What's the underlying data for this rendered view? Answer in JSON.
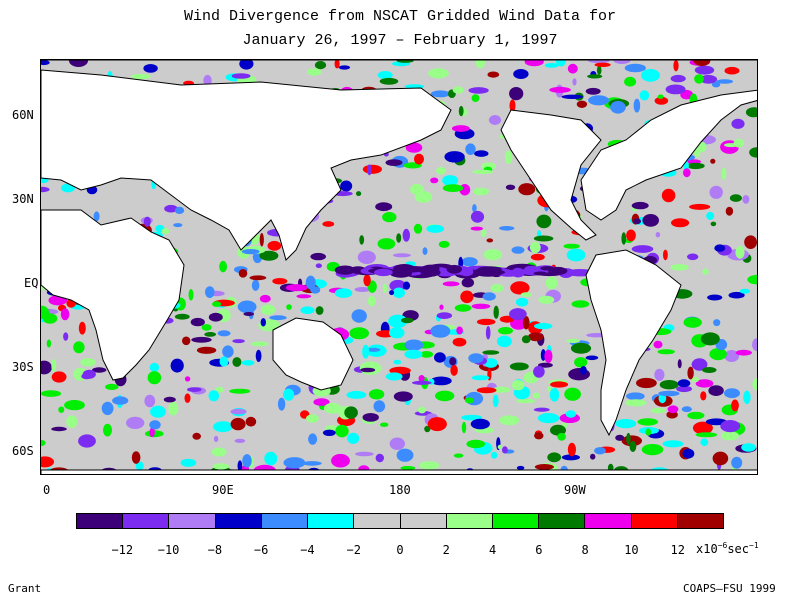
{
  "title_line1": "Wind Divergence from NSCAT Gridded Wind Data for",
  "title_line2": "January 26, 1997 – February 1, 1997",
  "lat_labels": [
    "60N",
    "30N",
    "EQ",
    "30S",
    "60S"
  ],
  "lon_labels": [
    "0",
    "90E",
    "180",
    "90W"
  ],
  "colorbar": {
    "colors": [
      "#3c0078",
      "#7b2cf0",
      "#b07cf5",
      "#0000c8",
      "#3c8cff",
      "#00ffff",
      "#cccccc",
      "#cccccc",
      "#99ff88",
      "#00ee00",
      "#007a00",
      "#ee00ee",
      "#ff0000",
      "#a00000"
    ],
    "tick_labels": [
      "−12",
      "−10",
      "−8",
      "−6",
      "−4",
      "−2",
      "0",
      "2",
      "4",
      "6",
      "8",
      "10",
      "12"
    ],
    "units_base": "x10",
    "units_exp": "−6",
    "units_tail": "sec",
    "units_tail_exp": "−1"
  },
  "credit_left": "Grant",
  "credit_right": "COAPS–FSU 1999"
}
